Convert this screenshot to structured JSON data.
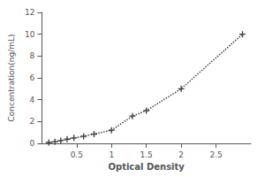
{
  "chart_data": {
    "type": "line",
    "x": [
      0.1,
      0.188,
      0.272,
      0.363,
      0.46,
      0.6,
      0.75,
      1.0,
      1.3,
      1.5,
      2.0,
      2.88
    ],
    "values": [
      0.08,
      0.15,
      0.25,
      0.38,
      0.5,
      0.65,
      0.85,
      1.2,
      2.5,
      3.0,
      5.0,
      10.0
    ],
    "xlabel": "Optical Density",
    "ylabel": "Concentration(ng/mL)",
    "xlim": [
      0,
      3
    ],
    "ylim": [
      0,
      12
    ],
    "xticks": [
      0.5,
      1,
      1.5,
      2,
      2.5
    ],
    "yticks": [
      0,
      2,
      4,
      6,
      8,
      10,
      12
    ],
    "color": "#444444",
    "marker": "plus",
    "line_style": "dotted",
    "grid": false
  }
}
